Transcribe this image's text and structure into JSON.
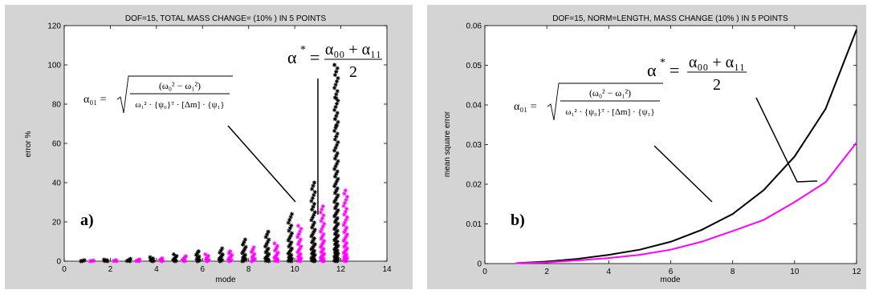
{
  "chart_data": [
    {
      "id": "a",
      "type": "scatter",
      "title": "DOF=15,  TOTAL MASS CHANGE= (10% ) IN 5 POINTS",
      "xlabel": "mode",
      "ylabel": "error %",
      "xlim": [
        0,
        14
      ],
      "ylim": [
        0,
        120
      ],
      "xticks": [
        0,
        2,
        4,
        6,
        8,
        10,
        12,
        14
      ],
      "yticks": [
        0,
        20,
        40,
        60,
        80,
        100,
        120
      ],
      "grid": false,
      "panel_label": "a)",
      "series": [
        {
          "color": "#000000",
          "marker": "*",
          "x_offset": -0.2,
          "modes": [
            1,
            2,
            3,
            4,
            5,
            6,
            7,
            8,
            9,
            10,
            11,
            12
          ],
          "max_values": [
            0.5,
            0.8,
            1.2,
            2,
            3.5,
            5,
            6.5,
            11,
            15,
            24,
            40,
            100
          ],
          "outliers": [
            {
              "x": 11.8,
              "y": 69
            },
            {
              "x": 11.8,
              "y": 83
            }
          ]
        },
        {
          "color": "#ff00ff",
          "marker": "*",
          "x_offset": 0.2,
          "modes": [
            1,
            2,
            3,
            4,
            5,
            6,
            7,
            8,
            9,
            10,
            11,
            12
          ],
          "max_values": [
            0.3,
            0.5,
            0.9,
            1.5,
            2.5,
            3.5,
            5,
            7,
            9,
            18,
            28,
            36
          ],
          "outliers": []
        }
      ],
      "annotations": {
        "alpha_star": {
          "lhs": "α",
          "sup": "*",
          "num": "α₀₀ + α₁₁",
          "den": "2"
        },
        "alpha_01": {
          "lhs": "α₀₁ =",
          "num": "(ω₀² − ω₁²)",
          "den": "ω₁² · {ψ₀}ᵀ · [Δm] · {ψ₁}"
        }
      }
    },
    {
      "id": "b",
      "type": "line",
      "title": "DOF=15, NORM=LENGTH,  MASS CHANGE (10% ) IN 5 POINTS",
      "xlabel": "mode",
      "ylabel": "mean square error",
      "xlim": [
        0,
        12
      ],
      "ylim": [
        0,
        0.06
      ],
      "xticks": [
        0,
        2,
        4,
        6,
        8,
        10,
        12
      ],
      "yticks": [
        0,
        0.01,
        0.02,
        0.03,
        0.04,
        0.05,
        0.06
      ],
      "grid": false,
      "panel_label": "b)",
      "x": [
        1,
        2,
        3,
        4,
        5,
        6,
        7,
        8,
        9,
        10,
        11,
        12
      ],
      "series": [
        {
          "color": "#000000",
          "values": [
            0.0001,
            0.0005,
            0.0012,
            0.0022,
            0.0035,
            0.0055,
            0.0085,
            0.0125,
            0.0185,
            0.027,
            0.039,
            0.059
          ]
        },
        {
          "color": "#ff00ff",
          "values": [
            0.0001,
            0.0003,
            0.0008,
            0.0014,
            0.0022,
            0.0035,
            0.0055,
            0.0082,
            0.011,
            0.0155,
            0.0205,
            0.0305
          ]
        }
      ],
      "annotations": {
        "alpha_star": {
          "lhs": "α",
          "sup": "*",
          "num": "α₀₀ + α₁₁",
          "den": "2"
        },
        "alpha_01": {
          "lhs": "α₀₁ =",
          "num": "(ω₀² − ω₁²)",
          "den": "ω₁² · {ψ₀}ᵀ · [Δm] · {ψ₁}"
        }
      }
    }
  ]
}
